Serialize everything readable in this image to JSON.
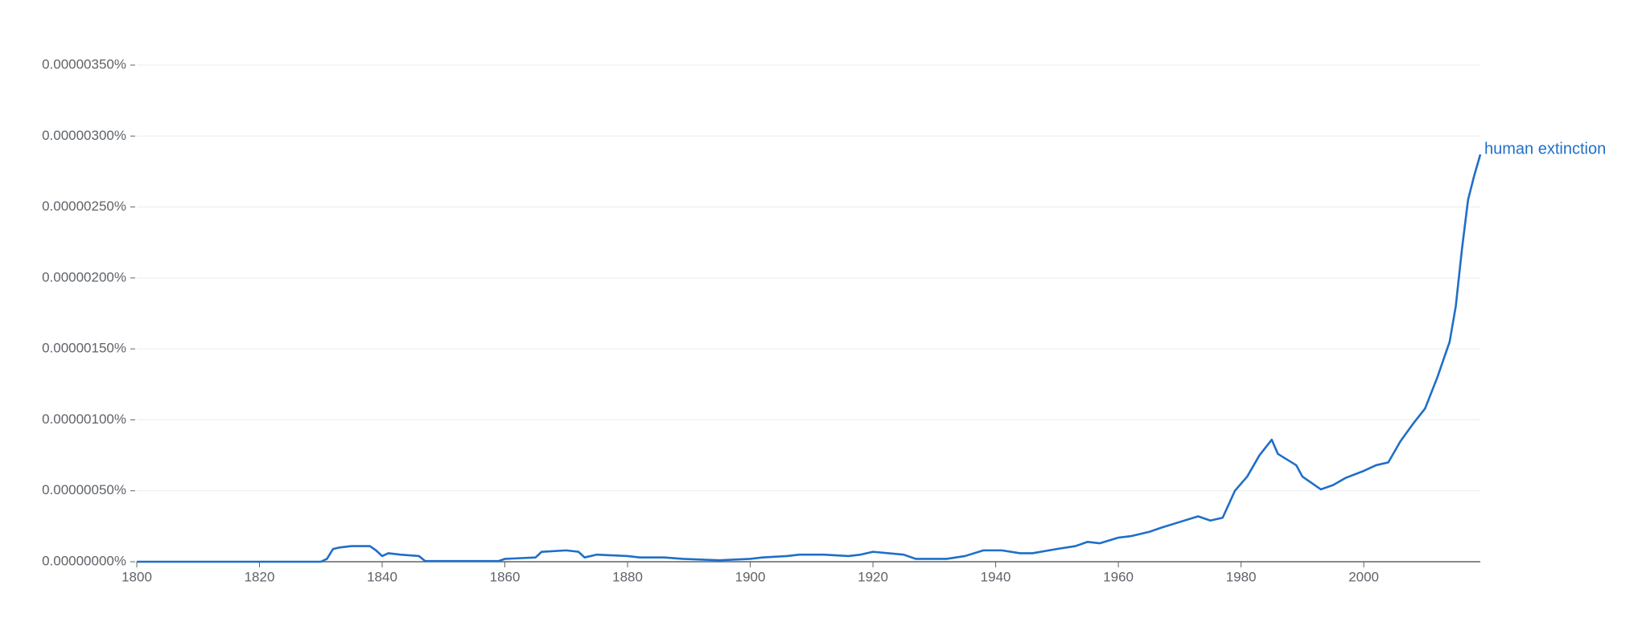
{
  "chart_data": {
    "type": "line",
    "x": [
      1800,
      1810,
      1820,
      1830,
      1831,
      1832,
      1833,
      1835,
      1838,
      1839,
      1840,
      1841,
      1843,
      1846,
      1847,
      1850,
      1855,
      1859,
      1860,
      1865,
      1866,
      1870,
      1872,
      1873,
      1875,
      1880,
      1882,
      1886,
      1889,
      1895,
      1900,
      1902,
      1906,
      1908,
      1912,
      1916,
      1918,
      1920,
      1925,
      1927,
      1932,
      1935,
      1938,
      1941,
      1944,
      1946,
      1950,
      1953,
      1955,
      1957,
      1960,
      1962,
      1965,
      1967,
      1970,
      1973,
      1975,
      1977,
      1979,
      1981,
      1983,
      1985,
      1986,
      1989,
      1990,
      1993,
      1995,
      1997,
      2000,
      2002,
      2004,
      2006,
      2008,
      2010,
      2012,
      2014,
      2015,
      2016,
      2017,
      2018,
      2019
    ],
    "series": [
      {
        "name": "human extinction",
        "color": "#1f6fc8",
        "values": [
          0,
          0,
          0,
          0,
          2e-08,
          9e-08,
          1e-07,
          1.1e-07,
          1.1e-07,
          8e-08,
          4e-08,
          6e-08,
          5e-08,
          4e-08,
          5e-09,
          5e-09,
          5e-09,
          5e-09,
          2e-08,
          3e-08,
          7e-08,
          8e-08,
          7e-08,
          3e-08,
          5e-08,
          4e-08,
          3e-08,
          3e-08,
          2e-08,
          1e-08,
          2e-08,
          3e-08,
          4e-08,
          5e-08,
          5e-08,
          4e-08,
          5e-08,
          7e-08,
          5e-08,
          2e-08,
          2e-08,
          4e-08,
          8e-08,
          8e-08,
          6e-08,
          6e-08,
          9e-08,
          1.1e-07,
          1.4e-07,
          1.3e-07,
          1.7e-07,
          1.8e-07,
          2.1e-07,
          2.4e-07,
          2.8e-07,
          3.2e-07,
          2.9e-07,
          3.1e-07,
          5e-07,
          6e-07,
          7.5e-07,
          8.6e-07,
          7.6e-07,
          6.8e-07,
          6e-07,
          5.1e-07,
          5.4e-07,
          5.9e-07,
          6.4e-07,
          6.8e-07,
          7e-07,
          8.5e-07,
          9.7e-07,
          1.08e-06,
          1.3e-06,
          1.55e-06,
          1.8e-06,
          2.2e-06,
          2.55e-06,
          2.72e-06,
          2.87e-06
        ]
      }
    ],
    "xlim": [
      1800,
      2019
    ],
    "xticks": [
      1800,
      1820,
      1840,
      1860,
      1880,
      1900,
      1920,
      1940,
      1960,
      1980,
      2000
    ],
    "ylim": [
      0,
      3.5e-06
    ],
    "yticks": [
      {
        "value": 0,
        "label": "0.00000000%"
      },
      {
        "value": 5e-07,
        "label": "0.00000050%"
      },
      {
        "value": 1e-06,
        "label": "0.00000100%"
      },
      {
        "value": 1.5e-06,
        "label": "0.00000150%"
      },
      {
        "value": 2e-06,
        "label": "0.00000200%"
      },
      {
        "value": 2.5e-06,
        "label": "0.00000250%"
      },
      {
        "value": 3e-06,
        "label": "0.00000300%"
      },
      {
        "value": 3.5e-06,
        "label": "0.00000350%"
      }
    ],
    "grid": true
  }
}
